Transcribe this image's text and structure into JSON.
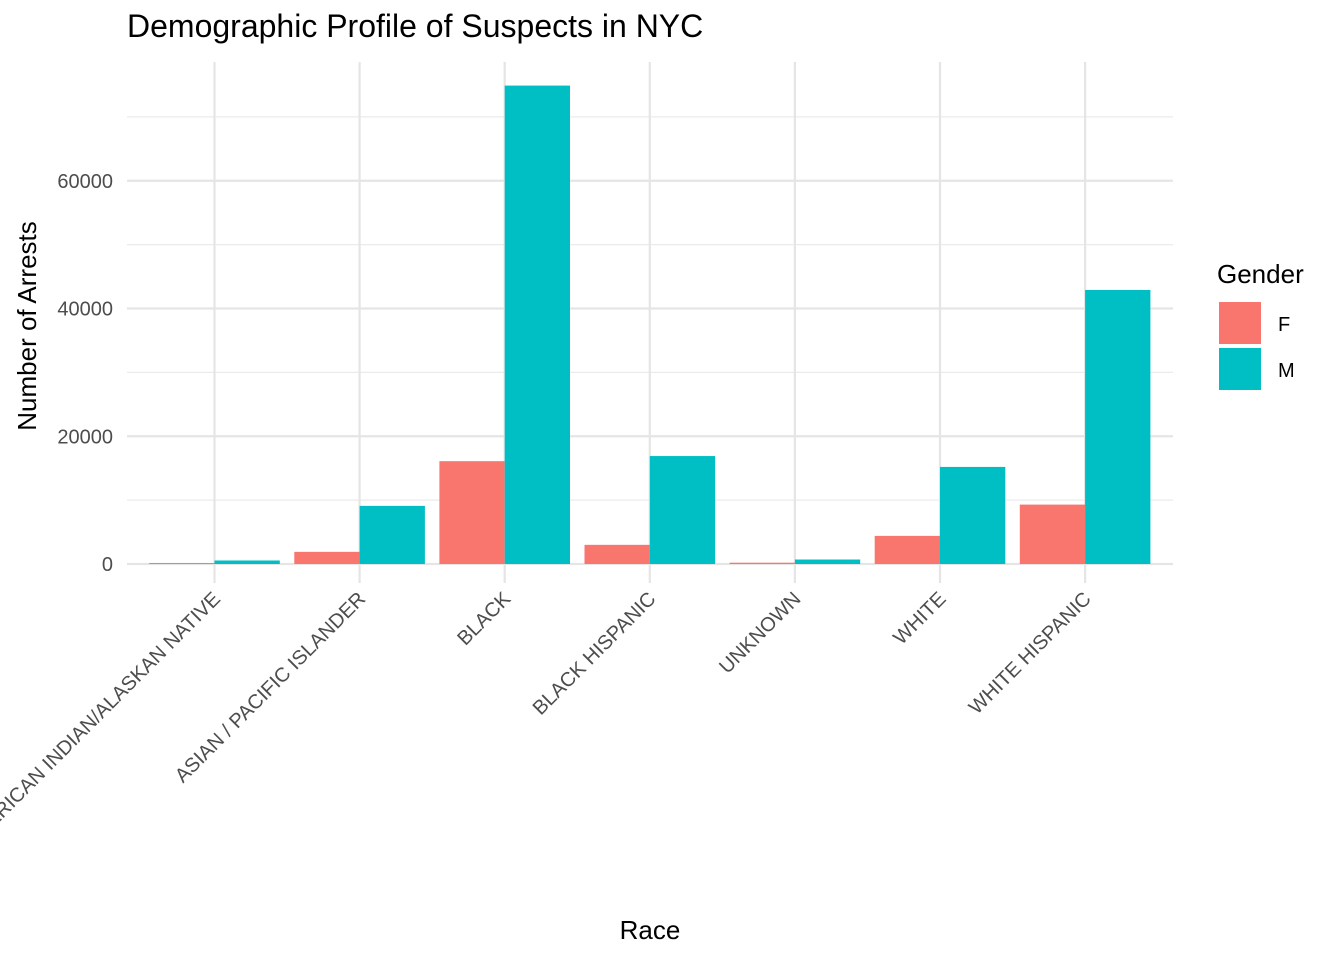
{
  "chart_data": {
    "type": "bar",
    "title": "Demographic Profile of Suspects in NYC",
    "xlabel": "Race",
    "ylabel": "Number of Arrests",
    "categories": [
      "AMERICAN INDIAN/ALASKAN NATIVE",
      "ASIAN / PACIFIC ISLANDER",
      "BLACK",
      "BLACK HISPANIC",
      "UNKNOWN",
      "WHITE",
      "WHITE HISPANIC"
    ],
    "series": [
      {
        "name": "F",
        "color": "#f8766d",
        "values": [
          150,
          1900,
          16100,
          3000,
          200,
          4400,
          9300
        ]
      },
      {
        "name": "M",
        "color": "#00bfc4",
        "values": [
          550,
          9100,
          74900,
          16900,
          700,
          15200,
          42900
        ]
      }
    ],
    "ylim": [
      0,
      78000
    ],
    "yticks": [
      0,
      20000,
      40000,
      60000
    ],
    "ytick_labels": [
      "0",
      "20000",
      "40000",
      "60000"
    ],
    "legend": {
      "title": "Gender",
      "position": "right"
    },
    "grid": true
  }
}
